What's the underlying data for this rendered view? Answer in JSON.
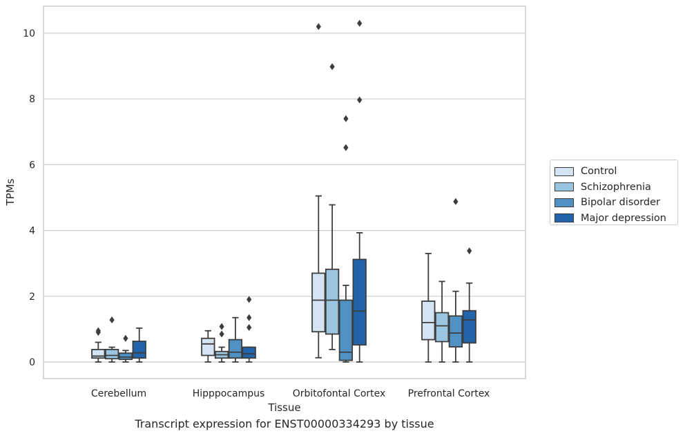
{
  "chart_data": {
    "type": "box",
    "xlabel": "Tissue",
    "ylabel": "TPMs",
    "ylim": [
      -0.5,
      10.8
    ],
    "yticks": [
      0,
      2,
      4,
      6,
      8,
      10
    ],
    "grid": "horizontal",
    "legend_position": "center-right, outside plot",
    "categories": [
      "Cerebellum",
      "Hipppocampus",
      "Orbitofontal Cortex",
      "Prefrontal Cortex"
    ],
    "series": [
      {
        "name": "Control",
        "color": "#d4e4f2",
        "boxes": [
          {
            "whisker_low": 0.0,
            "q1": 0.12,
            "median": 0.18,
            "q3": 0.38,
            "whisker_high": 0.6,
            "outliers": [
              0.9,
              0.95
            ]
          },
          {
            "whisker_low": 0.0,
            "q1": 0.2,
            "median": 0.55,
            "q3": 0.72,
            "whisker_high": 0.95,
            "outliers": []
          },
          {
            "whisker_low": 0.13,
            "q1": 0.92,
            "median": 1.88,
            "q3": 2.7,
            "whisker_high": 5.05,
            "outliers": [
              10.2
            ]
          },
          {
            "whisker_low": 0.0,
            "q1": 0.68,
            "median": 1.2,
            "q3": 1.85,
            "whisker_high": 3.3,
            "outliers": []
          }
        ]
      },
      {
        "name": "Schizophrenia",
        "color": "#9ac5e0",
        "boxes": [
          {
            "whisker_low": 0.0,
            "q1": 0.1,
            "median": 0.2,
            "q3": 0.38,
            "whisker_high": 0.45,
            "outliers": [
              1.28
            ]
          },
          {
            "whisker_low": 0.0,
            "q1": 0.12,
            "median": 0.22,
            "q3": 0.32,
            "whisker_high": 0.45,
            "outliers": [
              0.85,
              1.08
            ]
          },
          {
            "whisker_low": 0.38,
            "q1": 0.85,
            "median": 1.88,
            "q3": 2.82,
            "whisker_high": 4.78,
            "outliers": [
              8.98
            ]
          },
          {
            "whisker_low": 0.0,
            "q1": 0.62,
            "median": 1.1,
            "q3": 1.5,
            "whisker_high": 2.45,
            "outliers": []
          }
        ]
      },
      {
        "name": "Bipolar disorder",
        "color": "#4e91c2",
        "boxes": [
          {
            "whisker_low": 0.0,
            "q1": 0.08,
            "median": 0.15,
            "q3": 0.27,
            "whisker_high": 0.35,
            "outliers": [
              0.72
            ]
          },
          {
            "whisker_low": 0.0,
            "q1": 0.12,
            "median": 0.3,
            "q3": 0.68,
            "whisker_high": 1.35,
            "outliers": []
          },
          {
            "whisker_low": 0.0,
            "q1": 0.05,
            "median": 0.3,
            "q3": 1.88,
            "whisker_high": 2.33,
            "outliers": [
              6.52,
              7.4
            ]
          },
          {
            "whisker_low": 0.0,
            "q1": 0.46,
            "median": 0.88,
            "q3": 1.4,
            "whisker_high": 2.15,
            "outliers": [
              4.88
            ]
          }
        ]
      },
      {
        "name": "Major depression",
        "color": "#2264aa",
        "boxes": [
          {
            "whisker_low": 0.0,
            "q1": 0.12,
            "median": 0.28,
            "q3": 0.63,
            "whisker_high": 1.03,
            "outliers": []
          },
          {
            "whisker_low": 0.0,
            "q1": 0.12,
            "median": 0.25,
            "q3": 0.45,
            "whisker_high": 0.45,
            "outliers": [
              1.05,
              1.35,
              1.9
            ]
          },
          {
            "whisker_low": 0.0,
            "q1": 0.52,
            "median": 1.55,
            "q3": 3.12,
            "whisker_high": 3.93,
            "outliers": [
              7.97,
              10.3
            ]
          },
          {
            "whisker_low": 0.0,
            "q1": 0.58,
            "median": 1.28,
            "q3": 1.56,
            "whisker_high": 2.4,
            "outliers": [
              3.38
            ]
          }
        ]
      }
    ]
  },
  "caption": "Transcript expression for ENST00000334293 by tissue"
}
